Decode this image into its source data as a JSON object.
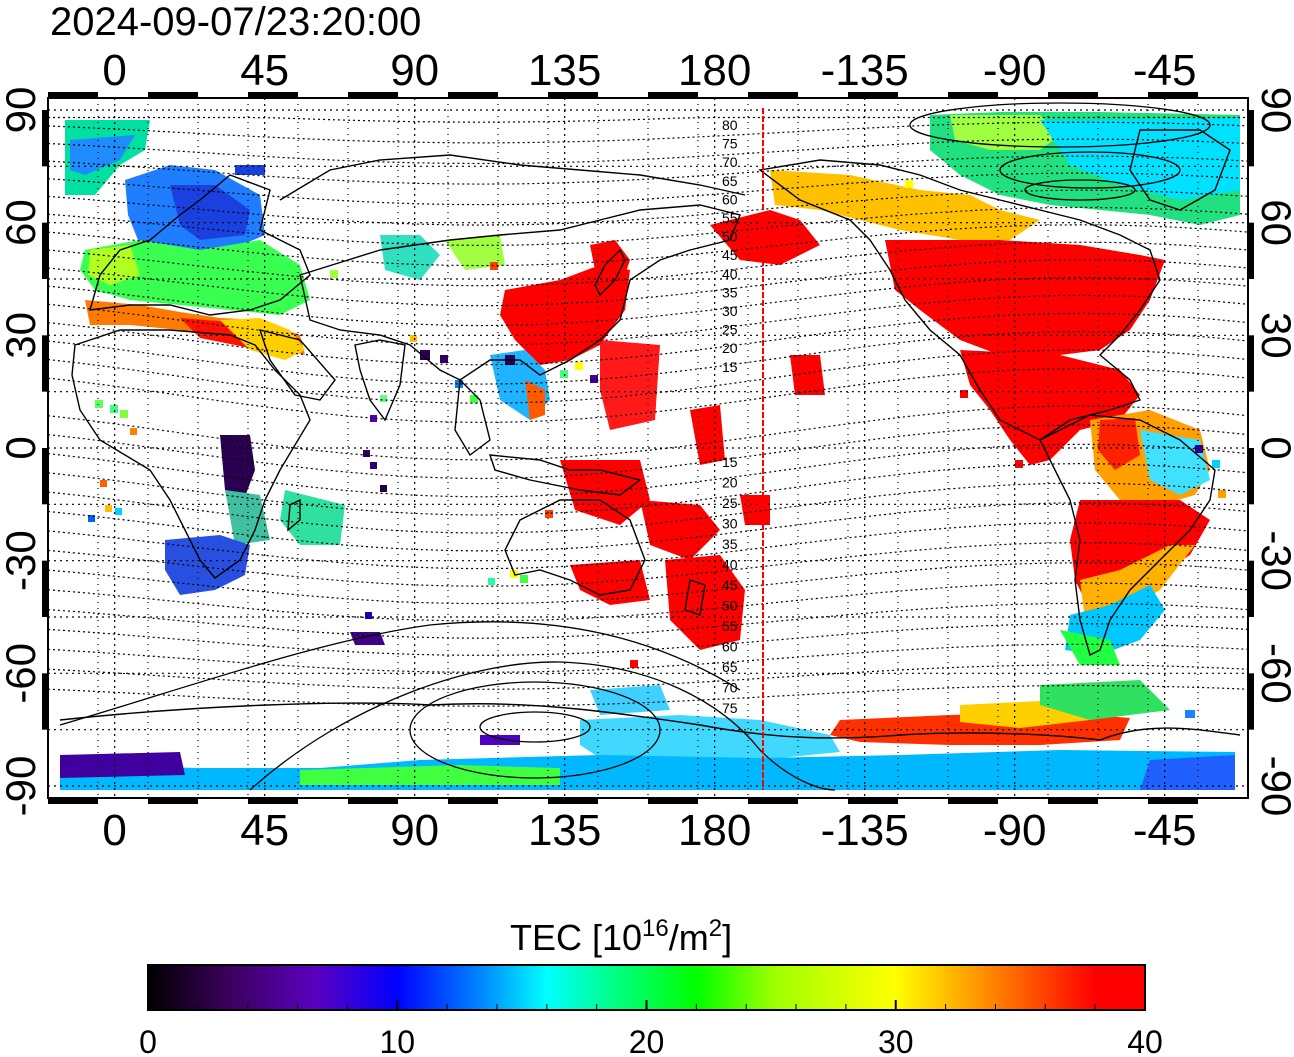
{
  "timestamp": "2024-09-07/23:20:00",
  "lon_ticks": [
    "0",
    "45",
    "90",
    "135",
    "180",
    "-135",
    "-90",
    "-45"
  ],
  "lat_ticks": [
    "90",
    "60",
    "30",
    "0",
    "-30",
    "-60",
    "-90"
  ],
  "mlat_north": [
    "80",
    "75",
    "70",
    "65",
    "60",
    "55",
    "50",
    "45",
    "40",
    "35",
    "30",
    "25",
    "20",
    "15"
  ],
  "mlat_south": [
    "15",
    "20",
    "25",
    "30",
    "35",
    "40",
    "45",
    "50",
    "55",
    "60",
    "65",
    "70",
    "75"
  ],
  "colorbar": {
    "title_prefix": "TEC  [10",
    "title_sup1": "16",
    "title_mid": "/m",
    "title_sup2": "2",
    "title_suffix": "]",
    "ticks": [
      "0",
      "10",
      "20",
      "30",
      "40"
    ],
    "min": 0,
    "max": 40
  },
  "colors": {
    "tec_scale": [
      "#000000",
      "#3a005a",
      "#5a00c0",
      "#0000ff",
      "#0080ff",
      "#00ffff",
      "#00ff80",
      "#00ff00",
      "#a0ff00",
      "#ffff00",
      "#ffb000",
      "#ff6000",
      "#ff0000"
    ],
    "high_tec": "#ff0000",
    "terminator_line": "#ff0000"
  },
  "map": {
    "projection": "cylindrical",
    "lon_range": [
      -20,
      340
    ],
    "lat_range": [
      -90,
      90
    ],
    "grid": "dotted",
    "terminator_longitude": 191
  }
}
